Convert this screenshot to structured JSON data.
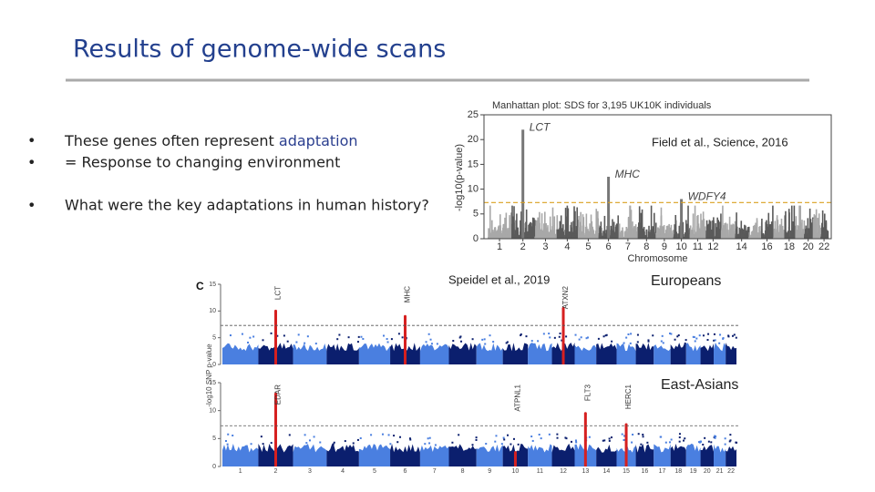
{
  "slide": {
    "title": "Results of genome-wide scans",
    "bullets": [
      {
        "text": "These genes often represent ",
        "highlight": "adaptation"
      },
      {
        "text": "= Response to changing environment"
      },
      {
        "text": "What were the key adaptations in human history?"
      }
    ]
  },
  "figure_top": {
    "title": "Manhattan plot: SDS for 3,195 UK10K individuals",
    "citation": "Field et al., Science, 2016",
    "ylabel": "-log10(p-value)",
    "xlabel": "Chromosome",
    "ylim": [
      0,
      25
    ],
    "yticks": [
      0,
      5,
      10,
      15,
      20,
      25
    ],
    "chromosomes": [
      1,
      2,
      3,
      4,
      5,
      6,
      7,
      8,
      9,
      10,
      11,
      12,
      14,
      16,
      18,
      20,
      22
    ],
    "threshold": 7.3,
    "peaks": [
      {
        "label": "LCT",
        "chromosome": 2,
        "value": 22
      },
      {
        "label": "MHC",
        "chromosome": 6,
        "value": 12.5
      },
      {
        "label": "WDFY4",
        "chromosome": 10,
        "value": 8
      }
    ]
  },
  "figure_bottom": {
    "panel_label": "C",
    "citation": "Speidel et al., 2019",
    "ylabel": "-log10 SNP p-value",
    "ylim": [
      0,
      15
    ],
    "yticks": [
      0,
      5,
      10,
      15
    ],
    "chromosomes": [
      1,
      2,
      3,
      4,
      5,
      6,
      7,
      8,
      9,
      10,
      11,
      12,
      13,
      14,
      15,
      16,
      17,
      18,
      19,
      20,
      21,
      22
    ],
    "threshold": 7.3,
    "panels": [
      {
        "name": "Europeans",
        "peaks": [
          {
            "label": "LCT",
            "chromosome": 2,
            "value": 10
          },
          {
            "label": "MHC",
            "chromosome": 6,
            "value": 9
          },
          {
            "label": "ATXN2",
            "chromosome": 12,
            "value": 10.5
          }
        ]
      },
      {
        "name": "East-Asians",
        "peaks": [
          {
            "label": "EDAR",
            "chromosome": 2,
            "value": 13
          },
          {
            "label": "ATPNL1",
            "chromosome": 10,
            "value": 2.5
          },
          {
            "label": "FLT3",
            "chromosome": 13,
            "value": 9.5
          },
          {
            "label": "HERC1",
            "chromosome": 15,
            "value": 7.5
          }
        ]
      }
    ]
  }
}
